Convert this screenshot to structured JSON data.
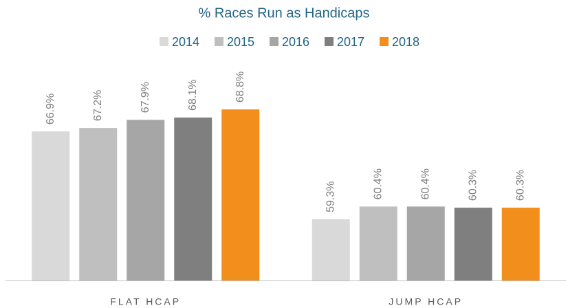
{
  "chart_data": {
    "type": "bar",
    "title": "% Races Run as Handicaps",
    "categories": [
      "FLAT HCAP",
      "JUMP HCAP"
    ],
    "series": [
      {
        "name": "2014",
        "color": "#d9d9d9",
        "values": [
          66.9,
          59.3
        ],
        "value_labels": [
          "66.9%",
          "59.3%"
        ]
      },
      {
        "name": "2015",
        "color": "#bfbfbf",
        "values": [
          67.2,
          60.4
        ],
        "value_labels": [
          "67.2%",
          "60.4%"
        ]
      },
      {
        "name": "2016",
        "color": "#a6a6a6",
        "values": [
          67.9,
          60.4
        ],
        "value_labels": [
          "67.9%",
          "60.4%"
        ]
      },
      {
        "name": "2017",
        "color": "#7f7f7f",
        "values": [
          68.1,
          60.3
        ],
        "value_labels": [
          "68.1%",
          "60.3%"
        ]
      },
      {
        "name": "2018",
        "color": "#f28e1c",
        "values": [
          68.8,
          60.3
        ],
        "value_labels": [
          "68.8%",
          "60.3%"
        ]
      }
    ],
    "ylim": [
      54,
      70
    ],
    "legend": "top"
  }
}
